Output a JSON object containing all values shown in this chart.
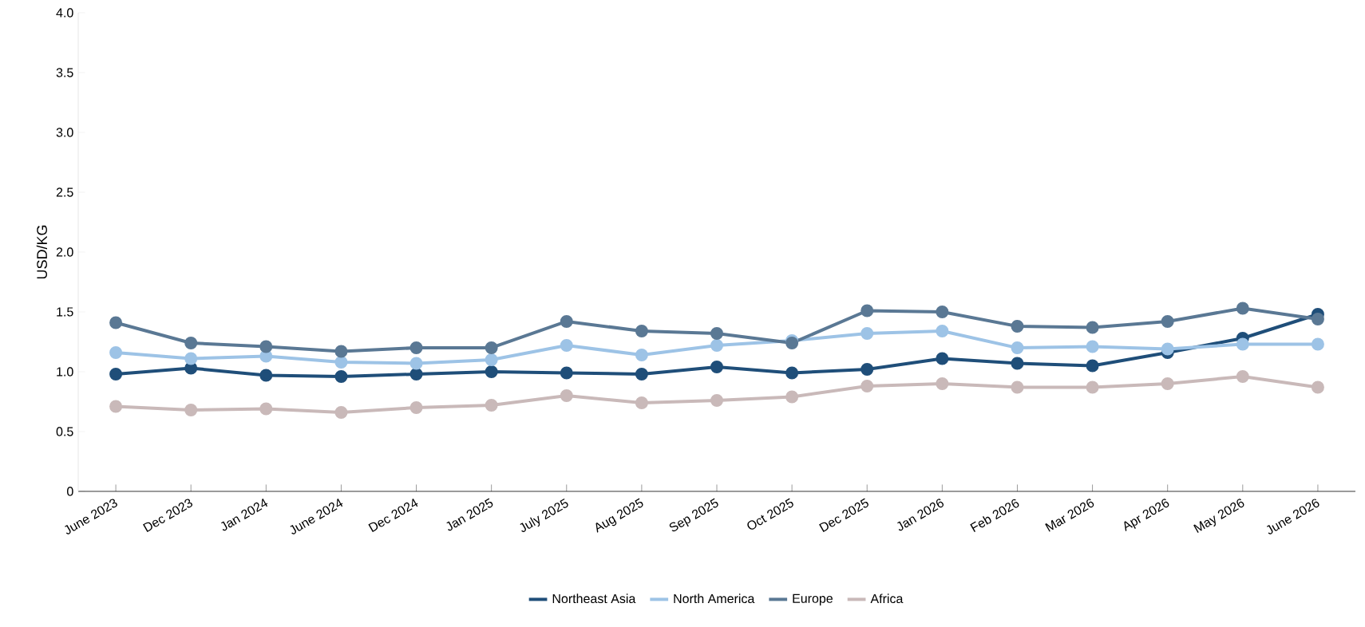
{
  "chart_data": {
    "type": "line",
    "ylabel": "USD/KG",
    "categories": [
      "June 2023",
      "Dec 2023",
      "Jan 2024",
      "June 2024",
      "Dec 2024",
      "Jan 2025",
      "July 2025",
      "Aug 2025",
      "Sep 2025",
      "Oct 2025",
      "Dec 2025",
      "Jan 2026",
      "Feb 2026",
      "Mar 2026",
      "Apr 2026",
      "May 2026",
      "June 2026"
    ],
    "series": [
      {
        "name": "Northeast Asia",
        "color": "#1f4e79",
        "values": [
          0.98,
          1.03,
          0.97,
          0.96,
          0.98,
          1.0,
          0.99,
          0.98,
          1.04,
          0.99,
          1.02,
          1.11,
          1.07,
          1.05,
          1.16,
          1.28,
          1.48
        ]
      },
      {
        "name": "North America",
        "color": "#9dc3e6",
        "values": [
          1.16,
          1.11,
          1.13,
          1.08,
          1.07,
          1.1,
          1.22,
          1.14,
          1.22,
          1.26,
          1.32,
          1.34,
          1.2,
          1.21,
          1.19,
          1.23,
          1.23
        ]
      },
      {
        "name": "Europe",
        "color": "#5a7894",
        "values": [
          1.41,
          1.24,
          1.21,
          1.17,
          1.2,
          1.2,
          1.42,
          1.34,
          1.32,
          1.24,
          1.51,
          1.5,
          1.38,
          1.37,
          1.42,
          1.53,
          1.44
        ]
      },
      {
        "name": "Africa",
        "color": "#c9b9b9",
        "values": [
          0.71,
          0.68,
          0.69,
          0.66,
          0.7,
          0.72,
          0.8,
          0.74,
          0.76,
          0.79,
          0.88,
          0.9,
          0.87,
          0.87,
          0.9,
          0.96,
          0.87
        ]
      }
    ],
    "ylim": [
      0,
      4
    ],
    "yticks": [
      {
        "value": 0,
        "label": "0"
      },
      {
        "value": 0.5,
        "label": "0.5"
      },
      {
        "value": 1,
        "label": "1.0"
      },
      {
        "value": 1.5,
        "label": "1.5"
      },
      {
        "value": 2,
        "label": "2.0"
      },
      {
        "value": 2.5,
        "label": "2.5"
      },
      {
        "value": 3,
        "label": "3.0"
      },
      {
        "value": 3.5,
        "label": "3.5"
      },
      {
        "value": 4,
        "label": "4.0"
      }
    ],
    "legend": "bottom",
    "marker": "circle",
    "line_style": "solid",
    "grid": false
  }
}
